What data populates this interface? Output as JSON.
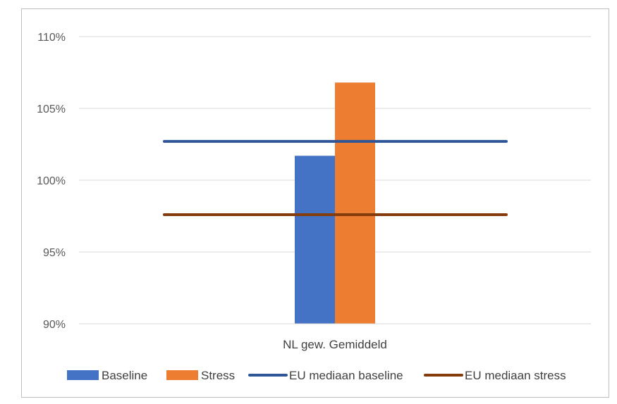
{
  "chart_data": {
    "type": "bar",
    "categories": [
      "NL gew. Gemiddeld"
    ],
    "series": [
      {
        "name": "Baseline",
        "values": [
          101.7
        ],
        "color": "#4472c4",
        "kind": "bar"
      },
      {
        "name": "Stress",
        "values": [
          106.8
        ],
        "color": "#ed7d31",
        "kind": "bar"
      },
      {
        "name": "EU mediaan baseline",
        "values": [
          102.7
        ],
        "color": "#2f5597",
        "kind": "line"
      },
      {
        "name": "EU mediaan stress",
        "values": [
          97.6
        ],
        "color": "#843c0c",
        "kind": "line"
      }
    ],
    "ylim": [
      90,
      110
    ],
    "yticks": [
      90,
      95,
      100,
      105,
      110
    ],
    "yticklabels": [
      "90%",
      "95%",
      "100%",
      "105%",
      "110%"
    ],
    "grid": true,
    "legend_position": "bottom",
    "title": "",
    "xlabel": "",
    "ylabel": ""
  }
}
